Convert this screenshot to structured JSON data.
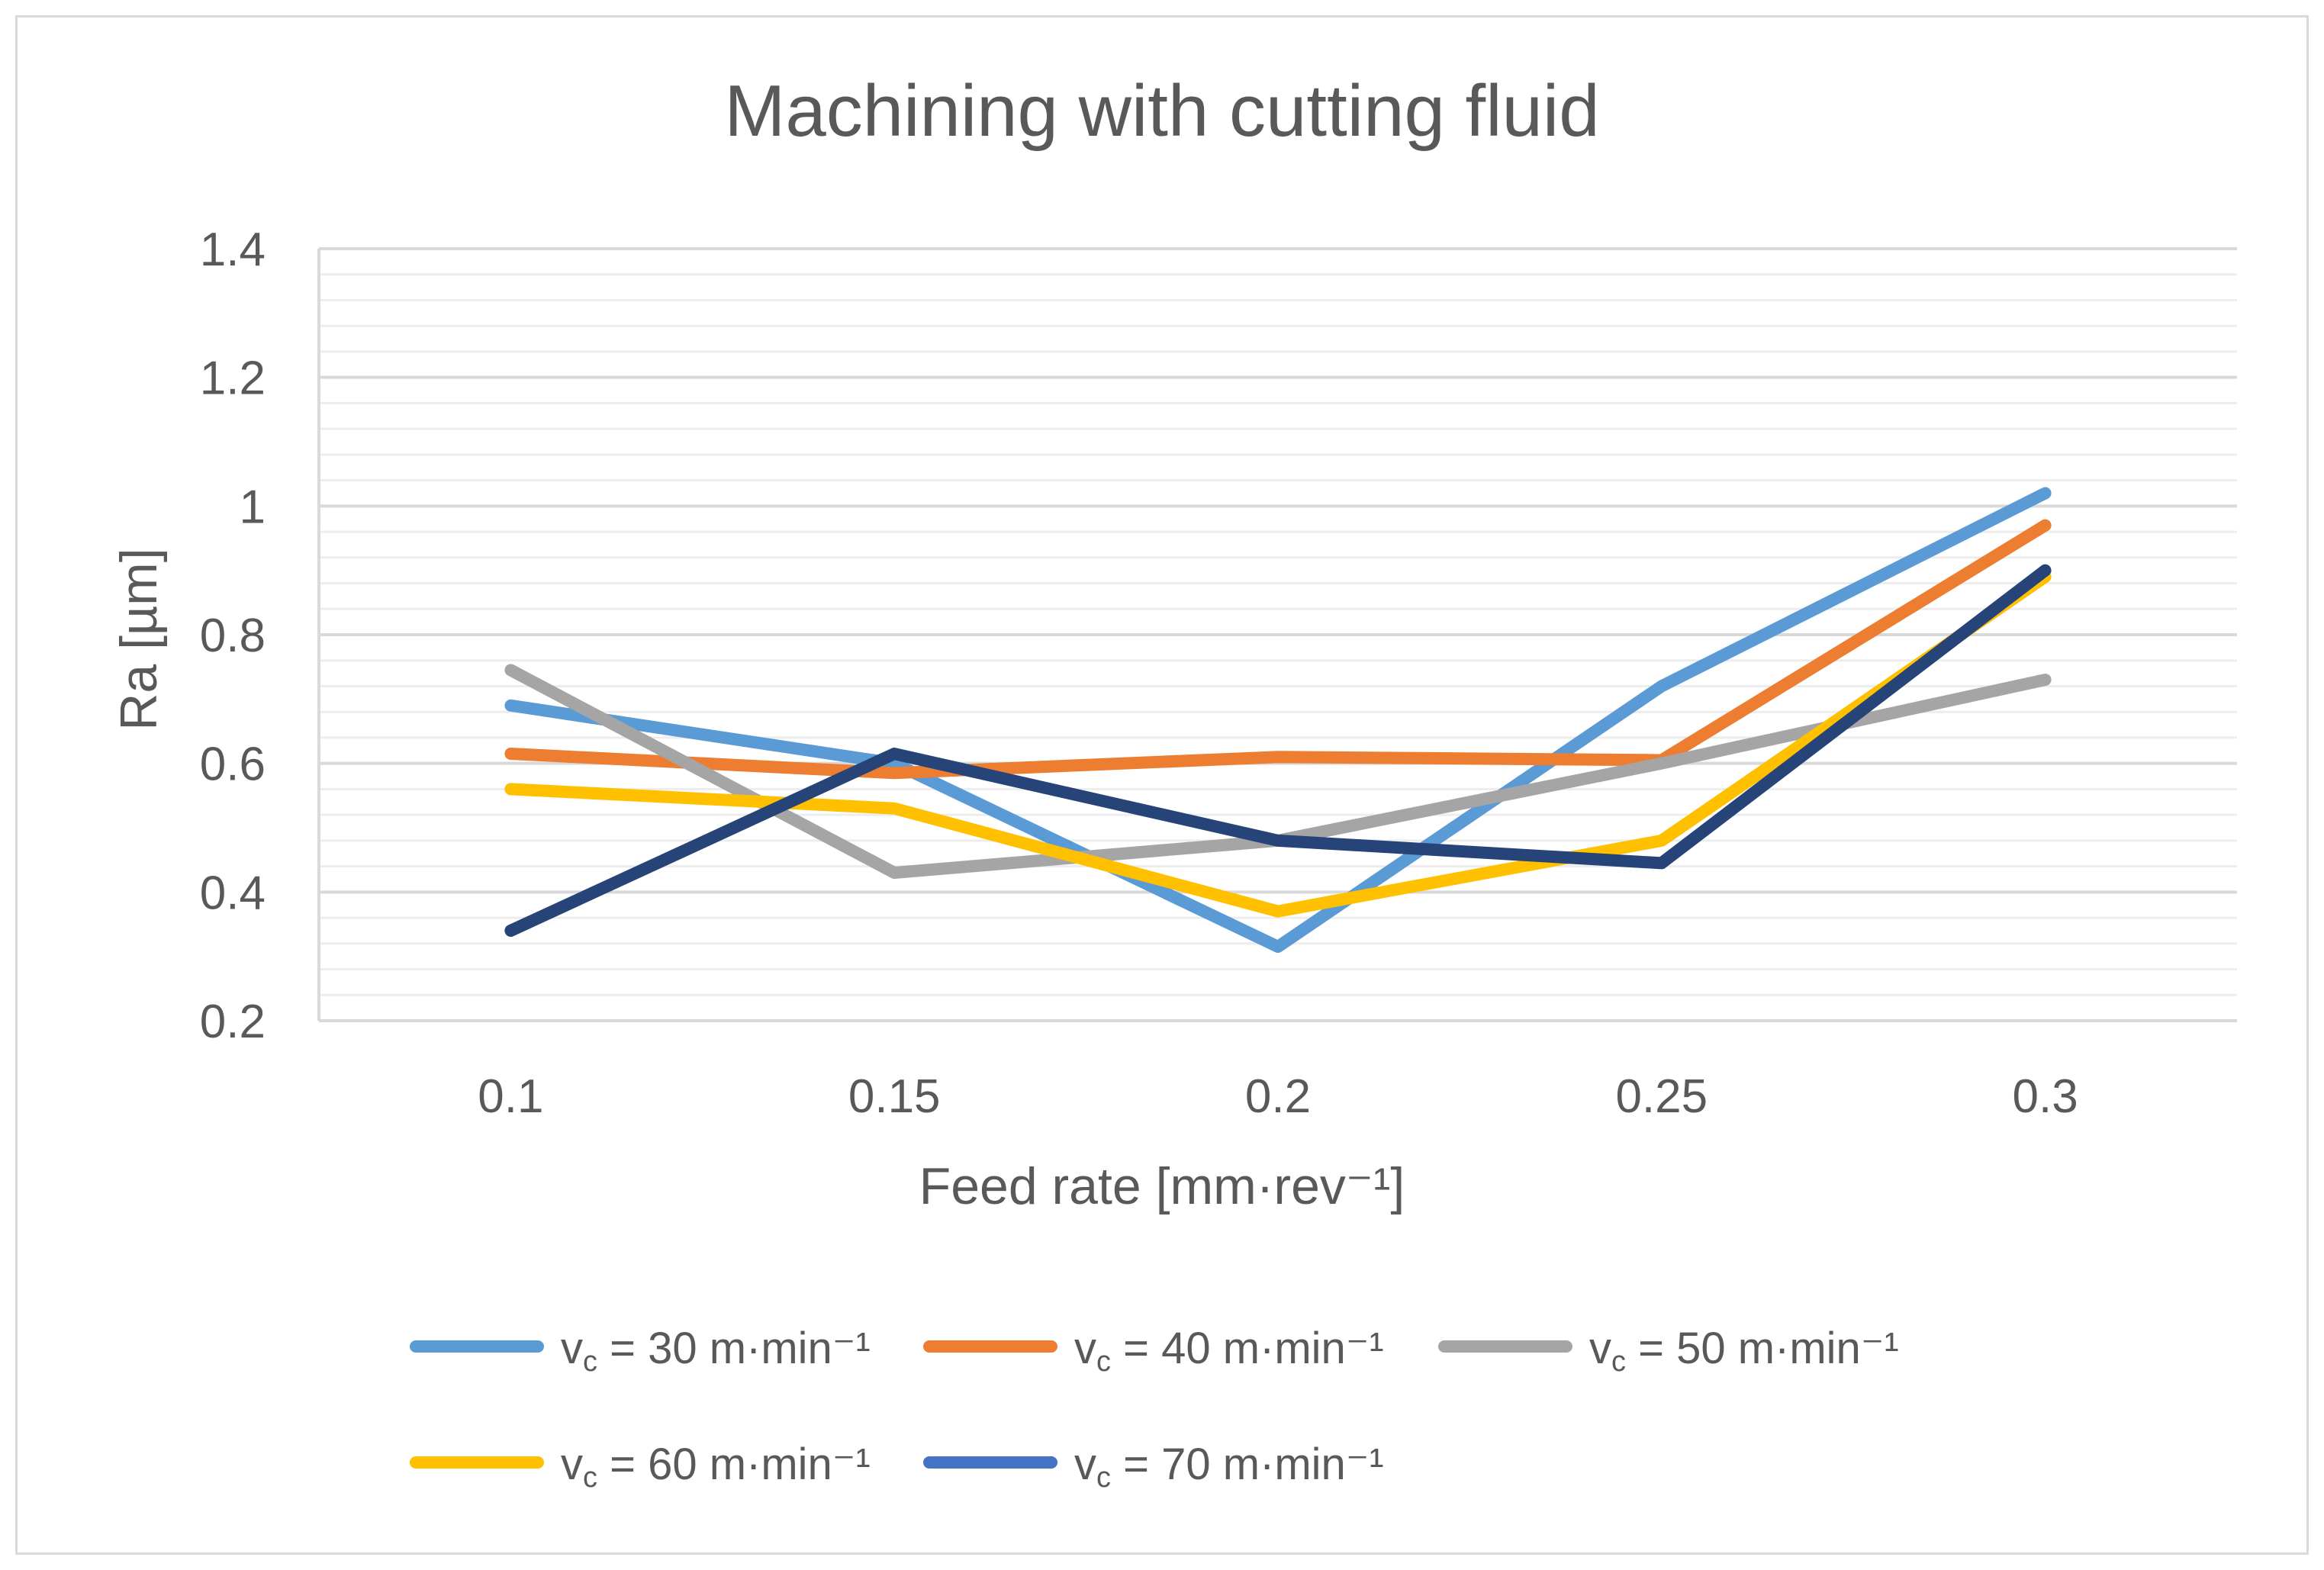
{
  "chart_data": {
    "type": "line",
    "title": "Machining with cutting fluid",
    "xlabel": "Feed rate [mm·rev⁻¹]",
    "ylabel": "Ra [µm]",
    "categories": [
      "0.1",
      "0.15",
      "0.2",
      "0.25",
      "0.3"
    ],
    "ylim": [
      0.2,
      1.4
    ],
    "yticks": [
      "0.2",
      "0.4",
      "0.6",
      "0.8",
      "1",
      "1.2",
      "1.4"
    ],
    "grid": true,
    "legend_position": "bottom",
    "series": [
      {
        "name": "vc = 30 m·min⁻¹",
        "sub": "c",
        "rest": " = 30 m·min⁻¹",
        "color": "#5b9bd5",
        "values": [
          0.69,
          0.6,
          0.315,
          0.72,
          1.02
        ]
      },
      {
        "name": "vc = 40 m·min⁻¹",
        "sub": "c",
        "rest": " = 40 m·min⁻¹",
        "color": "#ed7d31",
        "values": [
          0.615,
          0.585,
          0.61,
          0.605,
          0.97
        ]
      },
      {
        "name": "vc = 50 m·min⁻¹",
        "sub": "c",
        "rest": " = 50 m·min⁻¹",
        "color": "#a5a5a5",
        "values": [
          0.745,
          0.43,
          0.48,
          0.6,
          0.73
        ]
      },
      {
        "name": "vc = 60 m·min⁻¹",
        "sub": "c",
        "rest": " = 60 m·min⁻¹",
        "color": "#ffc000",
        "values": [
          0.56,
          0.53,
          0.37,
          0.48,
          0.89
        ]
      },
      {
        "name": "vc = 70 m·min⁻¹",
        "sub": "c",
        "rest": " = 70 m·min⁻¹",
        "color": "#264478",
        "legend_color": "#4472c4",
        "values": [
          0.34,
          0.615,
          0.48,
          0.445,
          0.9
        ]
      }
    ]
  }
}
